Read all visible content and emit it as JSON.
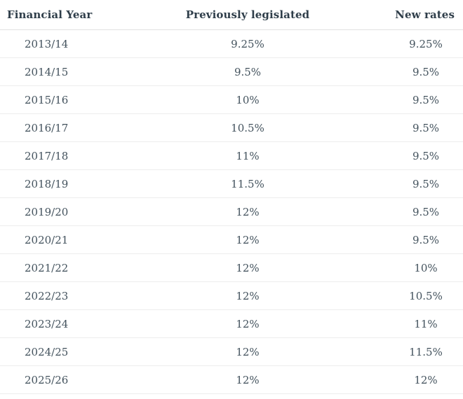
{
  "chart_data": {
    "type": "table",
    "columns": [
      "Financial Year",
      "Previously legislated",
      "New rates"
    ],
    "rows": [
      [
        "2013/14",
        "9.25%",
        "9.25%"
      ],
      [
        "2014/15",
        "9.5%",
        "9.5%"
      ],
      [
        "2015/16",
        "10%",
        "9.5%"
      ],
      [
        "2016/17",
        "10.5%",
        "9.5%"
      ],
      [
        "2017/18",
        "11%",
        "9.5%"
      ],
      [
        "2018/19",
        "11.5%",
        "9.5%"
      ],
      [
        "2019/20",
        "12%",
        "9.5%"
      ],
      [
        "2020/21",
        "12%",
        "9.5%"
      ],
      [
        "2021/22",
        "12%",
        "10%"
      ],
      [
        "2022/23",
        "12%",
        "10.5%"
      ],
      [
        "2023/24",
        "12%",
        "11%"
      ],
      [
        "2024/25",
        "12%",
        "11.5%"
      ],
      [
        "2025/26",
        "12%",
        "12%"
      ]
    ],
    "layout": {
      "header_alignments": [
        "left",
        "center",
        "right"
      ],
      "cell_alignments": [
        "left",
        "center",
        "center"
      ],
      "grid": "horizontal-dividers-only"
    }
  },
  "colors": {
    "header_text": "#2f3e4a",
    "cell_text": "#43525d",
    "header_divider": "#e2e2e2",
    "row_divider": "#ededed",
    "background": "#ffffff"
  }
}
